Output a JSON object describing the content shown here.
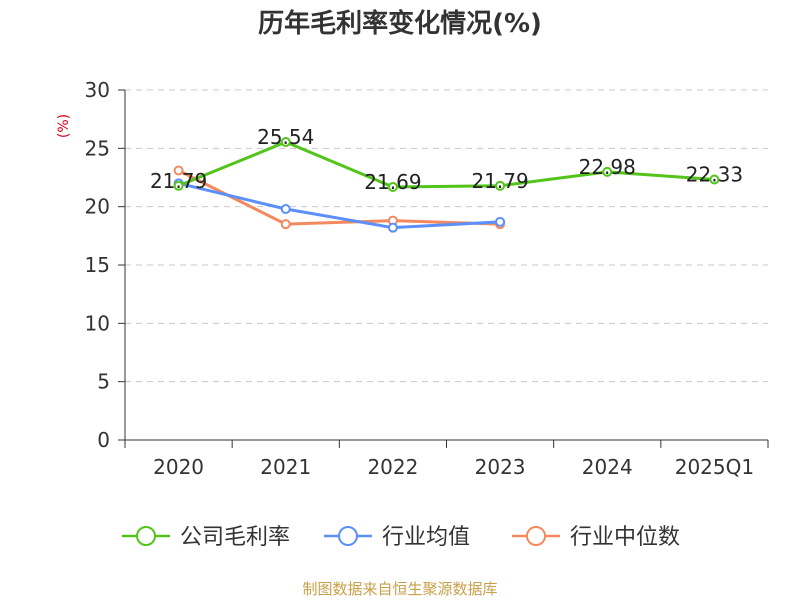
{
  "chart_data": {
    "type": "line",
    "title": "历年毛利率变化情况(%)",
    "ylabel": "(%)",
    "categories": [
      "2020",
      "2021",
      "2022",
      "2023",
      "2024",
      "2025Q1"
    ],
    "ylim": [
      0,
      30
    ],
    "yticks": [
      0,
      5,
      10,
      15,
      20,
      25,
      30
    ],
    "grid": true,
    "legend_position": "bottom",
    "series": [
      {
        "name": "公司毛利率",
        "color": "#52c41a",
        "values": [
          21.79,
          25.54,
          21.69,
          21.79,
          22.98,
          22.33
        ],
        "labeled": true
      },
      {
        "name": "行业均值",
        "color": "#5b8ff9",
        "values": [
          22.0,
          19.8,
          18.2,
          18.7,
          null,
          null
        ],
        "labeled": false
      },
      {
        "name": "行业中位数",
        "color": "#f4895f",
        "values": [
          23.1,
          18.5,
          18.8,
          18.5,
          null,
          null
        ],
        "labeled": false
      }
    ],
    "source": "制图数据来自恒生聚源数据库"
  }
}
